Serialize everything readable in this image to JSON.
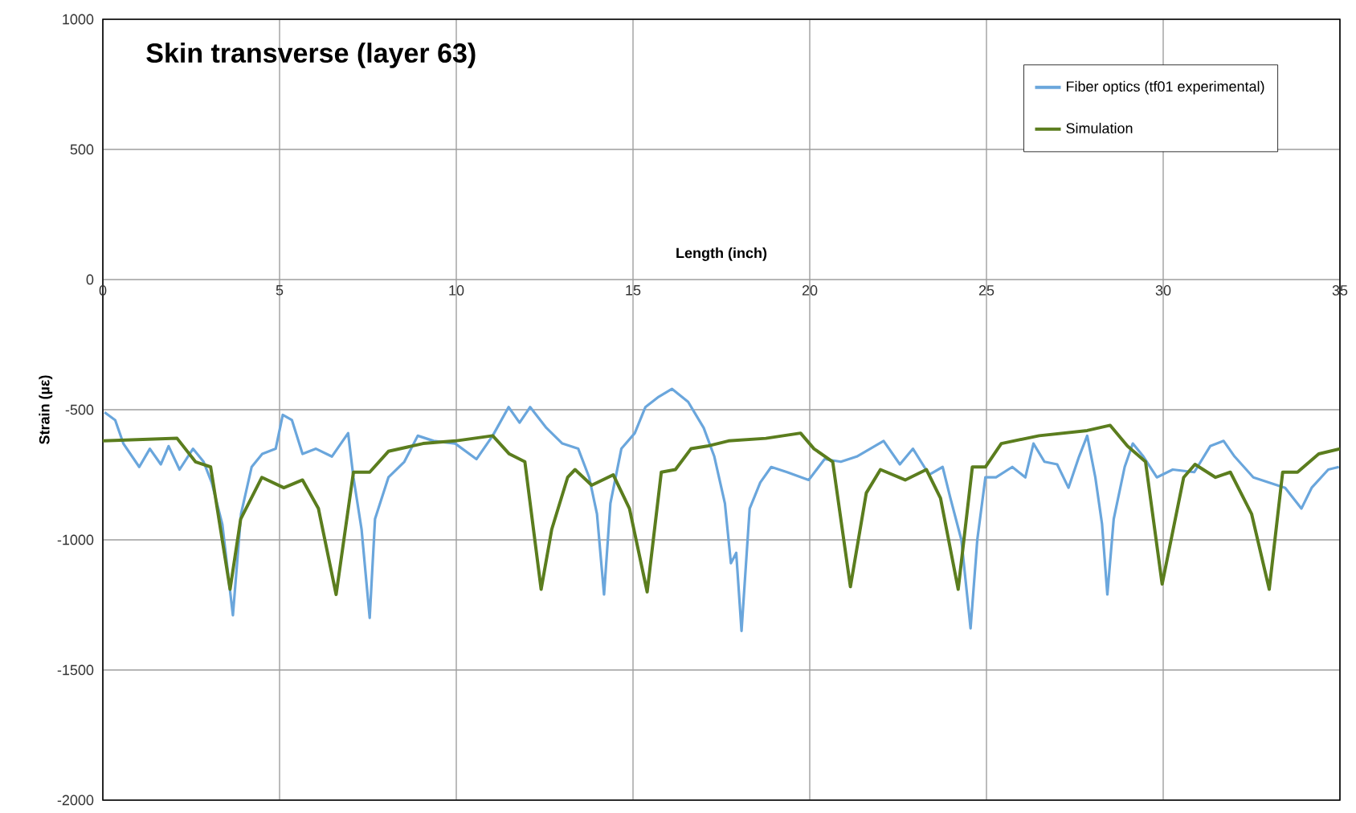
{
  "chart_data": {
    "type": "line",
    "title": "Skin transverse (layer 63)",
    "xlabel": "Length (inch)",
    "ylabel": "Strain (µε)",
    "xlim": [
      0,
      35
    ],
    "xticks": [
      0,
      5,
      10,
      15,
      20,
      25,
      30,
      35
    ],
    "ylim": [
      -2000,
      1000
    ],
    "yticks": [
      -2000,
      -1500,
      -1000,
      -500,
      0,
      500,
      1000
    ],
    "grid": true,
    "legend": "top right",
    "series": [
      {
        "name": "Fiber optics (tf01 experimental)",
        "color": "#6aa6dc",
        "x": [
          0.05,
          0.35,
          0.58,
          1.03,
          1.33,
          1.64,
          1.86,
          2.17,
          2.55,
          2.85,
          3.08,
          3.38,
          3.68,
          3.91,
          4.21,
          4.51,
          4.89,
          5.09,
          5.35,
          5.65,
          6.03,
          6.48,
          6.94,
          7.09,
          7.32,
          7.55,
          7.7,
          8.08,
          8.53,
          8.91,
          9.36,
          9.97,
          10.57,
          11.03,
          11.48,
          11.79,
          12.09,
          12.55,
          13.0,
          13.45,
          13.76,
          13.98,
          14.18,
          14.36,
          14.67,
          15.05,
          15.35,
          15.73,
          16.1,
          16.56,
          17.0,
          17.3,
          17.6,
          17.77,
          17.92,
          18.07,
          18.3,
          18.6,
          18.91,
          19.36,
          19.97,
          20.42,
          20.88,
          21.33,
          22.09,
          22.55,
          22.92,
          23.38,
          23.76,
          23.98,
          24.29,
          24.55,
          24.74,
          24.97,
          25.27,
          25.73,
          26.1,
          26.33,
          26.64,
          27.0,
          27.32,
          27.62,
          27.85,
          28.08,
          28.27,
          28.42,
          28.6,
          28.91,
          29.14,
          29.44,
          29.82,
          30.27,
          30.88,
          31.33,
          31.71,
          32.02,
          32.55,
          33.0,
          33.45,
          33.91,
          34.2,
          34.67,
          34.97
        ],
        "values": [
          -510,
          -540,
          -630,
          -720,
          -650,
          -710,
          -640,
          -730,
          -650,
          -700,
          -780,
          -940,
          -1290,
          -900,
          -720,
          -670,
          -650,
          -520,
          -540,
          -670,
          -650,
          -680,
          -590,
          -760,
          -960,
          -1300,
          -920,
          -760,
          -700,
          -600,
          -620,
          -630,
          -690,
          -600,
          -490,
          -550,
          -490,
          -570,
          -630,
          -650,
          -760,
          -900,
          -1210,
          -860,
          -650,
          -590,
          -490,
          -450,
          -420,
          -470,
          -570,
          -680,
          -860,
          -1090,
          -1050,
          -1350,
          -880,
          -780,
          -720,
          -740,
          -770,
          -690,
          -700,
          -680,
          -620,
          -710,
          -650,
          -750,
          -720,
          -840,
          -1000,
          -1340,
          -1000,
          -760,
          -760,
          -720,
          -760,
          -630,
          -700,
          -710,
          -800,
          -680,
          -600,
          -760,
          -940,
          -1210,
          -920,
          -720,
          -630,
          -680,
          -760,
          -730,
          -740,
          -640,
          -620,
          -680,
          -760,
          -780,
          -800,
          -880,
          -800,
          -730,
          -720
        ]
      },
      {
        "name": "Simulation",
        "color": "#5b7d1e",
        "x": [
          0,
          2.1,
          2.62,
          3.05,
          3.6,
          3.9,
          4.5,
          5.12,
          5.65,
          6.1,
          6.6,
          7.09,
          7.55,
          8.08,
          9.06,
          9.97,
          11.03,
          11.5,
          11.94,
          12.4,
          12.7,
          13.15,
          13.36,
          13.83,
          14.44,
          14.9,
          15.4,
          15.8,
          16.2,
          16.64,
          17.1,
          17.7,
          18.76,
          19.74,
          20.12,
          20.65,
          21.15,
          21.6,
          22.0,
          22.7,
          23.3,
          23.7,
          24.2,
          24.6,
          24.97,
          25.42,
          26.49,
          27.85,
          28.5,
          28.99,
          29.5,
          29.97,
          30.58,
          30.9,
          31.48,
          31.9,
          32.5,
          33.0,
          33.38,
          33.8,
          34.4,
          35
        ],
        "values": [
          -620,
          -610,
          -700,
          -720,
          -1190,
          -920,
          -760,
          -800,
          -770,
          -880,
          -1210,
          -740,
          -740,
          -660,
          -630,
          -620,
          -600,
          -670,
          -700,
          -1190,
          -960,
          -760,
          -730,
          -790,
          -750,
          -880,
          -1200,
          -740,
          -730,
          -650,
          -640,
          -620,
          -610,
          -590,
          -650,
          -700,
          -1180,
          -820,
          -730,
          -770,
          -730,
          -840,
          -1190,
          -720,
          -720,
          -630,
          -600,
          -580,
          -560,
          -640,
          -700,
          -1170,
          -760,
          -710,
          -760,
          -740,
          -900,
          -1190,
          -740,
          -740,
          -670,
          -650
        ]
      }
    ]
  }
}
